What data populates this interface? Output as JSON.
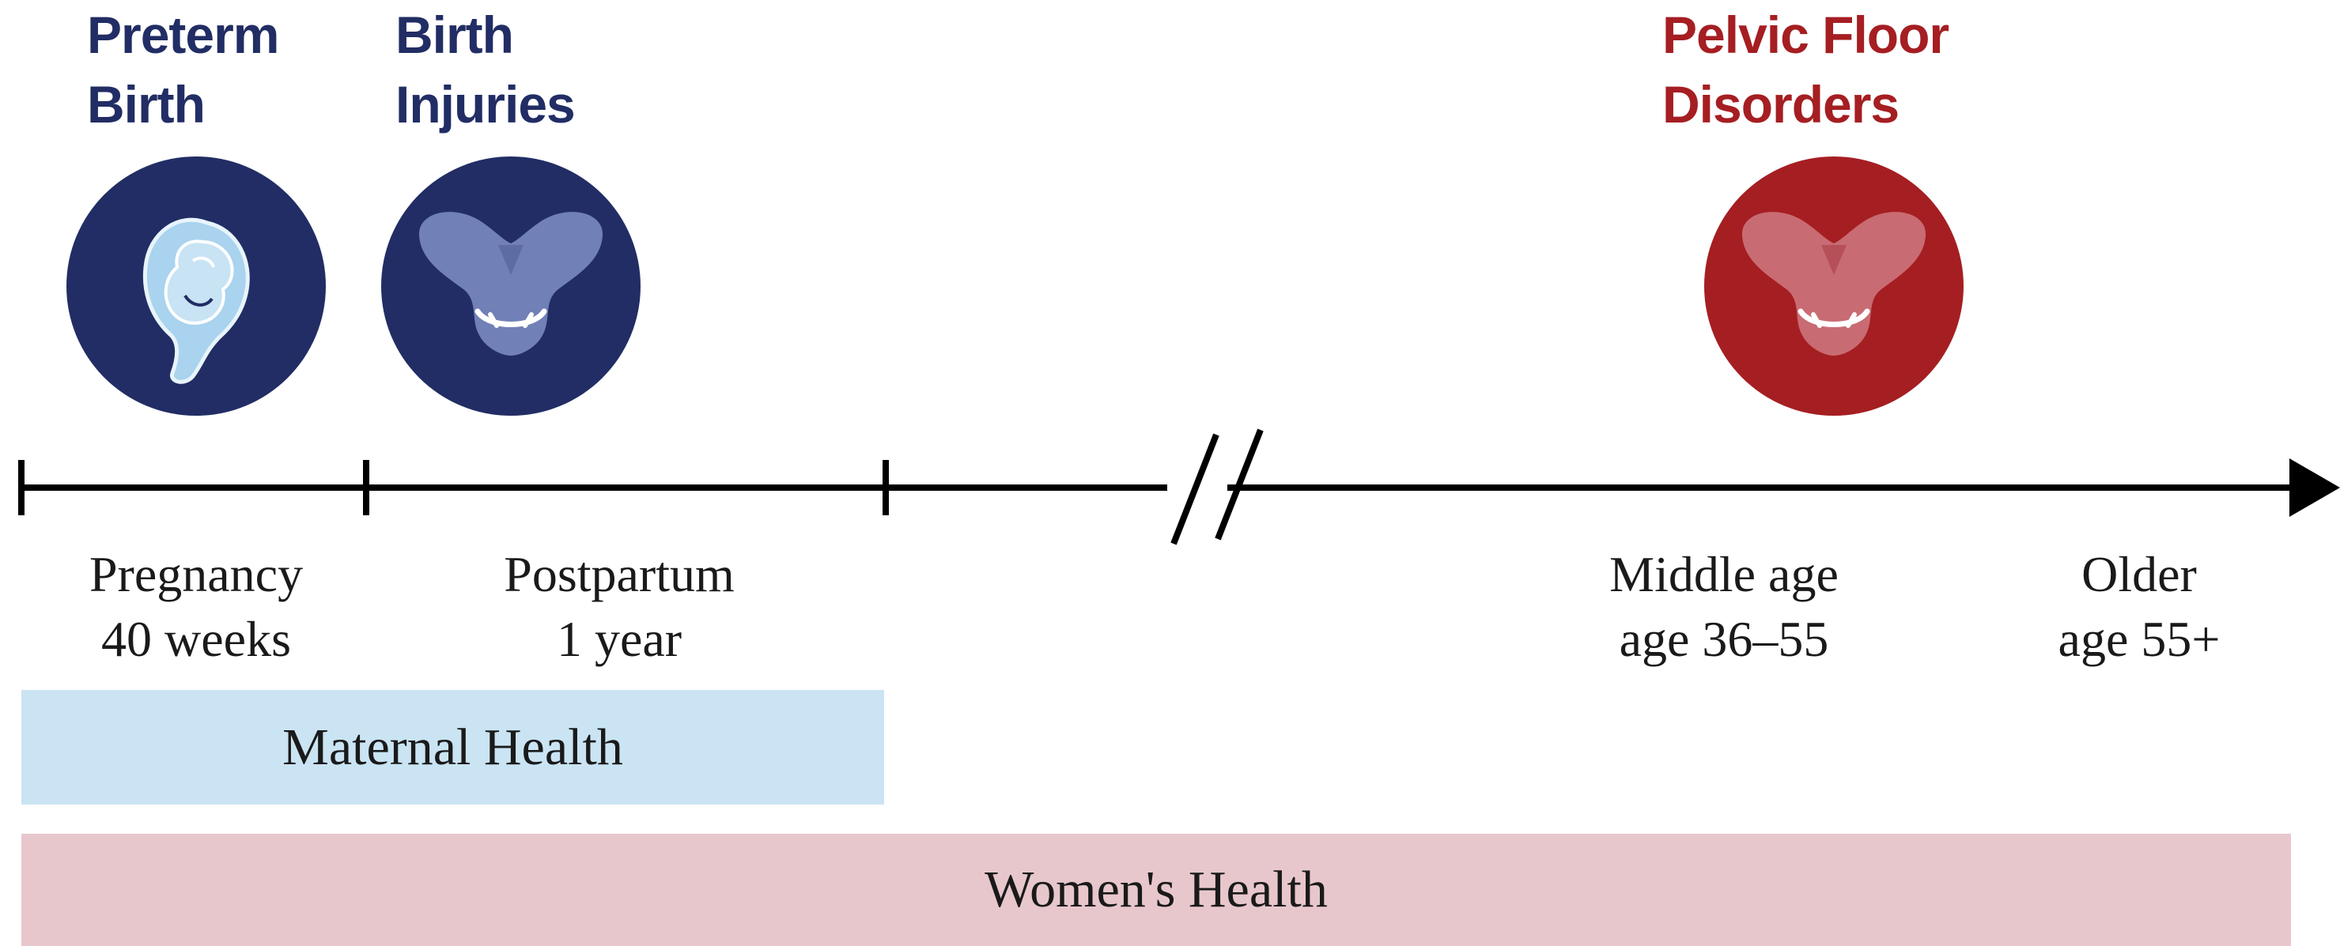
{
  "colors": {
    "navy": "#212d64",
    "crimson": "#a51e22",
    "maternal_bar": "#cae4f3",
    "womens_bar": "#e8c7cc",
    "axis": "#000000"
  },
  "events": [
    {
      "title": [
        "Preterm",
        "Birth"
      ],
      "icon": "fetus-in-uterus-icon",
      "color": "navy"
    },
    {
      "title": [
        "Birth",
        "Injuries"
      ],
      "icon": "pelvis-bone-icon",
      "color": "navy"
    },
    {
      "title": [
        "Pelvic Floor",
        "Disorders"
      ],
      "icon": "pelvis-bone-icon",
      "color": "crimson"
    }
  ],
  "periods": [
    {
      "lines": [
        "Pregnancy",
        "40 weeks"
      ]
    },
    {
      "lines": [
        "Postpartum",
        "1 year"
      ]
    },
    {
      "lines": [
        "Middle age",
        "age 36–55"
      ]
    },
    {
      "lines": [
        "Older",
        "age 55+"
      ]
    }
  ],
  "bars": {
    "maternal": "Maternal Health",
    "womens": "Women's Health"
  }
}
